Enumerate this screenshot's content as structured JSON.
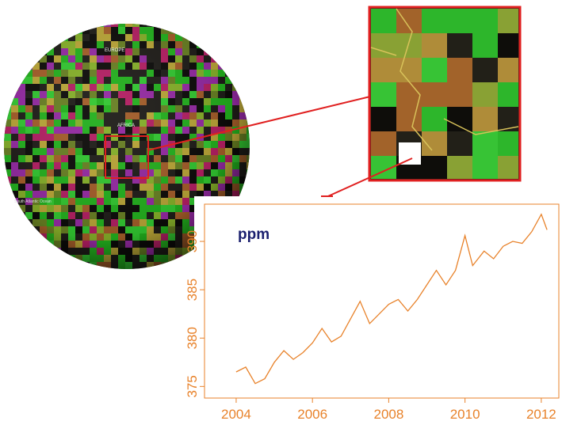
{
  "globe_labels": [
    "EUROPE",
    "AFRICA",
    "South Atlantic Ocean"
  ],
  "chart_data": {
    "type": "line",
    "annotation": "ppm",
    "color": "#e8822a",
    "x": [
      2004.0,
      2004.25,
      2004.5,
      2004.75,
      2005.0,
      2005.25,
      2005.5,
      2005.75,
      2006.0,
      2006.25,
      2006.5,
      2006.75,
      2007.0,
      2007.25,
      2007.5,
      2007.75,
      2008.0,
      2008.25,
      2008.5,
      2008.75,
      2009.0,
      2009.25,
      2009.5,
      2009.75,
      2010.0,
      2010.2,
      2010.5,
      2010.75,
      2011.0,
      2011.25,
      2011.5,
      2011.75,
      2012.0,
      2012.15
    ],
    "values": [
      376.5,
      377.0,
      375.3,
      375.8,
      377.5,
      378.7,
      377.8,
      378.5,
      379.5,
      381.0,
      379.6,
      380.2,
      382.0,
      383.8,
      381.5,
      382.5,
      383.5,
      384.0,
      382.8,
      384.0,
      385.5,
      387.0,
      385.5,
      387.0,
      390.6,
      387.5,
      389.0,
      388.2,
      389.5,
      390.0,
      389.8,
      391.0,
      392.8,
      391.2
    ],
    "xlim": [
      2003.17,
      2012.46
    ],
    "ylim": [
      373.8,
      393.85
    ],
    "xticks": [
      2004,
      2006,
      2008,
      2010,
      2012
    ],
    "yticks": [
      375,
      380,
      385,
      390
    ]
  }
}
